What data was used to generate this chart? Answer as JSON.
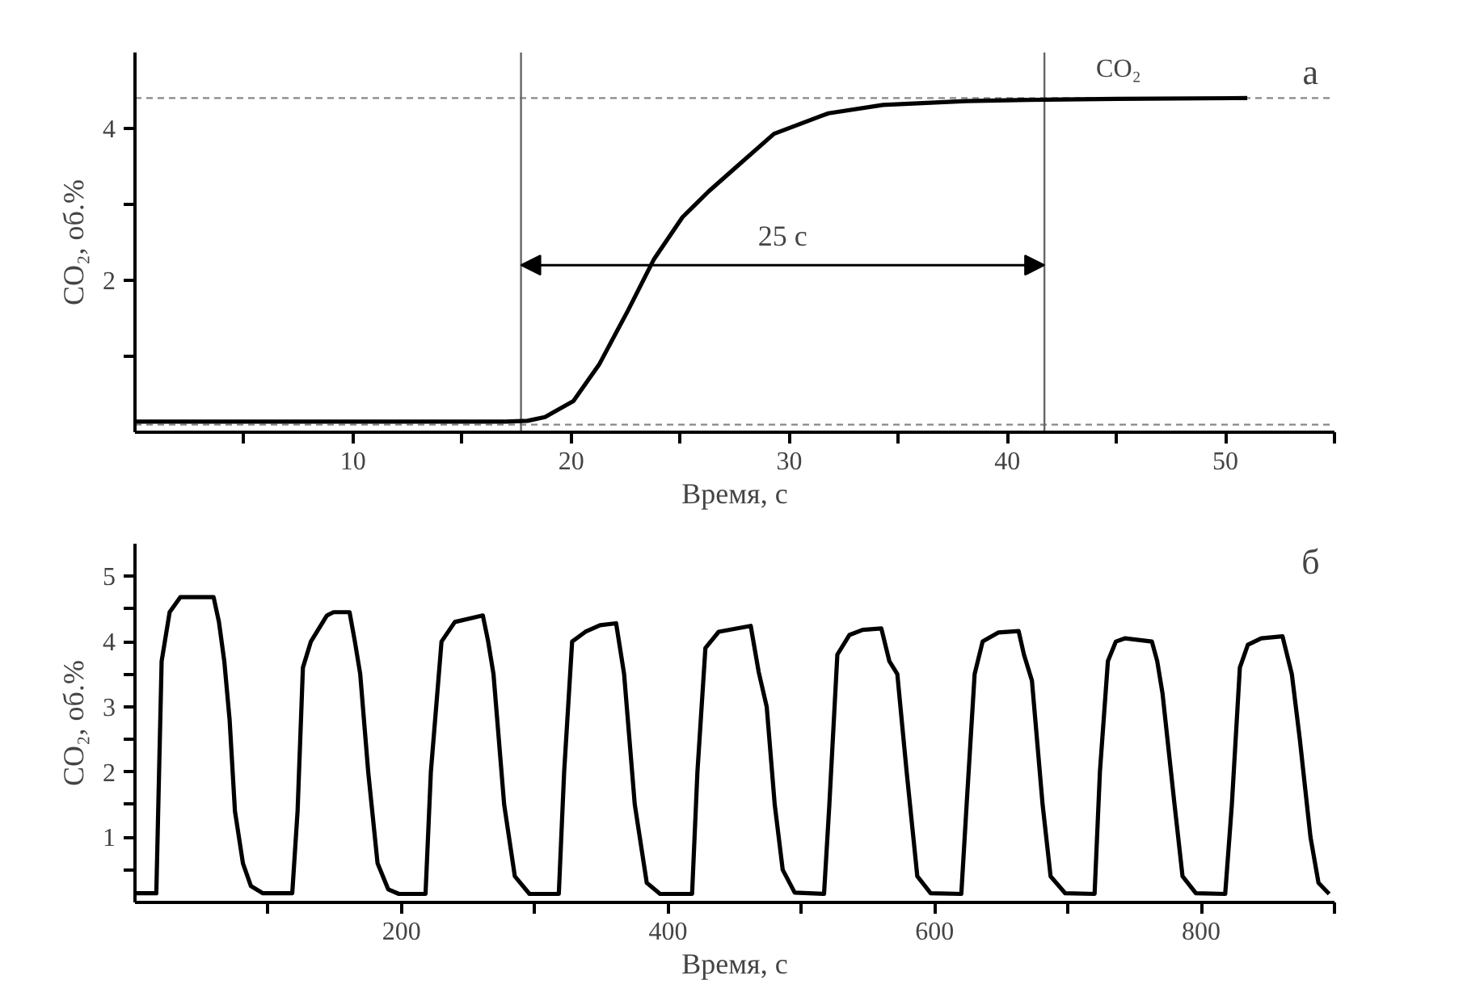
{
  "chart_data": [
    {
      "type": "line",
      "title": "а",
      "xlabel": "Время, с",
      "ylabel": "CO₂, об.%",
      "xlim": [
        0,
        55
      ],
      "ylim": [
        0,
        5
      ],
      "xticks": [
        {
          "value": 5,
          "label": null
        },
        10,
        {
          "value": 15,
          "label": null
        },
        20,
        {
          "value": 25,
          "label": null
        },
        30,
        {
          "value": 35,
          "label": null
        },
        40,
        {
          "value": 45,
          "label": null
        },
        50,
        {
          "value": 55,
          "label": null
        }
      ],
      "yticks": [
        {
          "value": 1,
          "label": null
        },
        2,
        {
          "value": 3,
          "label": null
        },
        4
      ],
      "grid": false,
      "line_style": "solid",
      "series": [
        {
          "color": "#000000",
          "x": [
            0,
            10,
            17,
            18,
            18.8,
            20.1,
            21.3,
            22.6,
            23.8,
            25.1,
            26.3,
            27.6,
            29.3,
            31.8,
            34.3,
            38.1,
            41.8,
            45,
            51
          ],
          "values": [
            0.14,
            0.14,
            0.14,
            0.15,
            0.2,
            0.41,
            0.9,
            1.6,
            2.28,
            2.83,
            3.17,
            3.5,
            3.93,
            4.2,
            4.31,
            4.36,
            4.38,
            4.39,
            4.4
          ]
        }
      ],
      "ref_lines": [
        {
          "axis": "y",
          "value": 4.4,
          "color": "#888888",
          "line_style": "dashed"
        },
        {
          "axis": "y",
          "value": 0.1,
          "color": "#888888",
          "line_style": "dashed"
        },
        {
          "axis": "x",
          "value": 17.7,
          "color": "#666666"
        },
        {
          "axis": "x",
          "value": 41.7,
          "color": "#666666"
        }
      ],
      "annotations": [
        "25 с",
        "CO₂"
      ]
    },
    {
      "type": "line",
      "title": "б",
      "xlabel": "Время, с",
      "ylabel": "CO₂, об.%",
      "xlim": [
        0,
        900
      ],
      "ylim": [
        0,
        5.5
      ],
      "xticks": [
        {
          "value": 100,
          "label": null
        },
        200,
        {
          "value": 300,
          "label": null
        },
        400,
        {
          "value": 500,
          "label": null
        },
        600,
        {
          "value": 700,
          "label": null
        },
        800,
        {
          "value": 900,
          "label": null
        }
      ],
      "yticks": [
        {
          "value": 0.5,
          "label": null
        },
        1,
        {
          "value": 1.5,
          "label": null
        },
        2,
        {
          "value": 2.5,
          "label": null
        },
        3,
        {
          "value": 3.5,
          "label": null
        },
        4,
        {
          "value": 4.5,
          "label": null
        },
        5
      ],
      "grid": false,
      "line_style": "solid",
      "series": [
        {
          "color": "#000000",
          "x": [
            0,
            16,
            20,
            26,
            34,
            59,
            63,
            67,
            71,
            75,
            81,
            87,
            96,
            118,
            122,
            126,
            132,
            144,
            149,
            161,
            165,
            169,
            175,
            182,
            190,
            198,
            218,
            222,
            230,
            240,
            261,
            265,
            269,
            277,
            285,
            296,
            318,
            322,
            328,
            338,
            349,
            361,
            367,
            375,
            384,
            394,
            418,
            422,
            428,
            438,
            462,
            468,
            474,
            480,
            486,
            495,
            517,
            521,
            527,
            536,
            546,
            560,
            566,
            572,
            579,
            587,
            597,
            620,
            624,
            630,
            636,
            648,
            663,
            667,
            673,
            681,
            687,
            698,
            720,
            724,
            730,
            736,
            743,
            763,
            767,
            771,
            780,
            786,
            796,
            818,
            823,
            829,
            835,
            845,
            861,
            868,
            874,
            882,
            888,
            896
          ],
          "values": [
            0.14,
            0.14,
            3.7,
            4.45,
            4.68,
            4.68,
            4.3,
            3.7,
            2.8,
            1.4,
            0.6,
            0.25,
            0.14,
            0.14,
            1.4,
            3.6,
            4.0,
            4.4,
            4.45,
            4.45,
            4.0,
            3.5,
            2.0,
            0.6,
            0.2,
            0.13,
            0.13,
            2.0,
            4.0,
            4.3,
            4.4,
            4.0,
            3.5,
            1.5,
            0.4,
            0.13,
            0.13,
            2.0,
            4.0,
            4.15,
            4.25,
            4.28,
            3.5,
            1.5,
            0.3,
            0.13,
            0.13,
            2.0,
            3.9,
            4.15,
            4.24,
            3.53,
            3.0,
            1.5,
            0.5,
            0.15,
            0.13,
            1.5,
            3.8,
            4.1,
            4.18,
            4.2,
            3.7,
            3.5,
            2.0,
            0.4,
            0.14,
            0.13,
            1.5,
            3.5,
            4.0,
            4.14,
            4.16,
            3.8,
            3.4,
            1.5,
            0.4,
            0.14,
            0.13,
            2.0,
            3.7,
            4.0,
            4.05,
            4.0,
            3.7,
            3.2,
            1.5,
            0.4,
            0.14,
            0.13,
            1.5,
            3.6,
            3.95,
            4.05,
            4.08,
            3.5,
            2.5,
            1.0,
            0.3,
            0.13
          ]
        }
      ]
    }
  ]
}
